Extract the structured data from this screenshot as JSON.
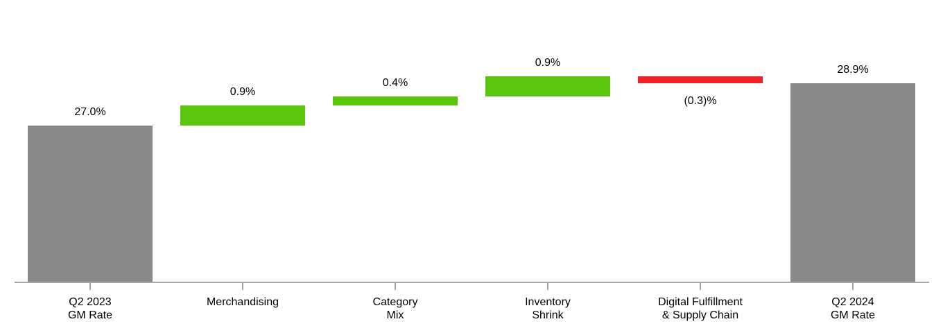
{
  "chart_data": {
    "type": "bar",
    "subtype": "waterfall",
    "categories": [
      "Q2 2023 GM Rate",
      "Merchandising",
      "Category Mix",
      "Inventory Shrink",
      "Digital Fulfillment & Supply Chain",
      "Q2 2024 GM Rate"
    ],
    "values": [
      27.0,
      0.9,
      0.4,
      0.9,
      -0.3,
      28.9
    ],
    "bars": [
      {
        "category_lines": [
          "Q2 2023",
          "GM Rate"
        ],
        "value": 27.0,
        "display": "27.0%",
        "role": "total",
        "label_position": "above"
      },
      {
        "category_lines": [
          "Merchandising"
        ],
        "value": 0.9,
        "display": "0.9%",
        "role": "increase",
        "label_position": "above"
      },
      {
        "category_lines": [
          "Category",
          "Mix"
        ],
        "value": 0.4,
        "display": "0.4%",
        "role": "increase",
        "label_position": "above"
      },
      {
        "category_lines": [
          "Inventory",
          "Shrink"
        ],
        "value": 0.9,
        "display": "0.9%",
        "role": "increase",
        "label_position": "above"
      },
      {
        "category_lines": [
          "Digital Fulfillment",
          "& Supply Chain"
        ],
        "value": -0.3,
        "display": "(0.3)%",
        "role": "decrease",
        "label_position": "below"
      },
      {
        "category_lines": [
          "Q2 2024",
          "GM Rate"
        ],
        "value": 28.9,
        "display": "28.9%",
        "role": "total",
        "label_position": "above"
      }
    ],
    "colors": {
      "total": "#8A8A8A",
      "increase": "#5BC40D",
      "decrease": "#ED2326",
      "axis": "#A8A8A8",
      "label_text": "#000000",
      "background": "#FFFFFF"
    },
    "axis": {
      "baseline_value": 20,
      "ylim": [
        20,
        32.5
      ],
      "y_axis_labels_visible": false,
      "gridlines": false,
      "x_axis_line_visible": true,
      "x_axis_ticks_visible": true
    },
    "legend": null,
    "title": ""
  }
}
